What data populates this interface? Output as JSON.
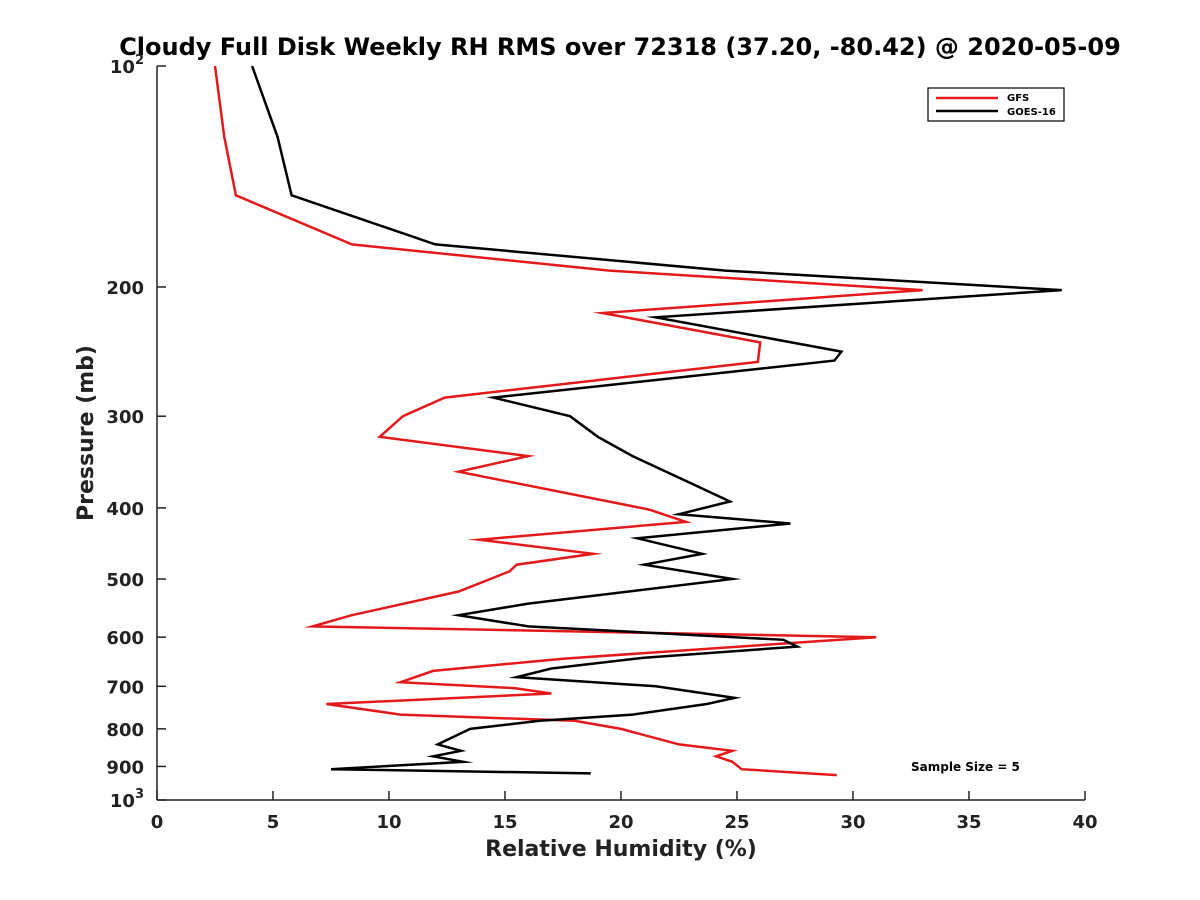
{
  "chart_data": {
    "type": "line",
    "title": "Cloudy Full Disk Weekly RH RMS over 72318 (37.20, -80.42) @ 2020-05-09",
    "xlabel": "Relative Humidity (%)",
    "ylabel": "Pressure (mb)",
    "xlim": [
      0,
      40
    ],
    "ylim": [
      100,
      1000
    ],
    "yscale": "log",
    "yreversed": true,
    "grid": false,
    "legend_position": "top-right",
    "x_ticks": [
      {
        "value": 0,
        "label": "0"
      },
      {
        "value": 5,
        "label": "5"
      },
      {
        "value": 10,
        "label": "10"
      },
      {
        "value": 15,
        "label": "15"
      },
      {
        "value": 20,
        "label": "20"
      },
      {
        "value": 25,
        "label": "25"
      },
      {
        "value": 30,
        "label": "30"
      },
      {
        "value": 35,
        "label": "35"
      },
      {
        "value": 40,
        "label": "40"
      }
    ],
    "y_ticks": [
      {
        "value": 100,
        "base": "10",
        "exp": "2"
      },
      {
        "value": 200,
        "label": "200"
      },
      {
        "value": 300,
        "label": "300"
      },
      {
        "value": 400,
        "label": "400"
      },
      {
        "value": 500,
        "label": "500"
      },
      {
        "value": 600,
        "label": "600"
      },
      {
        "value": 700,
        "label": "700"
      },
      {
        "value": 800,
        "label": "800"
      },
      {
        "value": 900,
        "label": "900"
      },
      {
        "value": 1000,
        "base": "10",
        "exp": "3"
      }
    ],
    "series": [
      {
        "name": "GFS",
        "color": "#e31a1c",
        "points": [
          [
            2.5,
            100
          ],
          [
            2.9,
            125
          ],
          [
            3.4,
            150
          ],
          [
            8.4,
            175
          ],
          [
            19.5,
            190
          ],
          [
            33.0,
            202
          ],
          [
            19.2,
            217
          ],
          [
            26.0,
            238
          ],
          [
            25.9,
            253
          ],
          [
            12.4,
            283
          ],
          [
            10.6,
            300
          ],
          [
            9.6,
            320
          ],
          [
            16.0,
            340
          ],
          [
            13.0,
            357
          ],
          [
            21.2,
            402
          ],
          [
            22.8,
            418
          ],
          [
            13.9,
            442
          ],
          [
            18.8,
            462
          ],
          [
            15.5,
            478
          ],
          [
            15.2,
            488
          ],
          [
            13.0,
            520
          ],
          [
            8.4,
            560
          ],
          [
            6.7,
            580
          ],
          [
            31.0,
            600
          ],
          [
            17.5,
            642
          ],
          [
            11.9,
            667
          ],
          [
            10.5,
            691
          ],
          [
            15.4,
            704
          ],
          [
            17.0,
            716
          ],
          [
            7.3,
            740
          ],
          [
            10.5,
            765
          ],
          [
            18.0,
            780
          ],
          [
            20.0,
            800
          ],
          [
            22.5,
            840
          ],
          [
            24.8,
            857
          ],
          [
            24.1,
            872
          ],
          [
            24.8,
            887
          ],
          [
            25.2,
            908
          ],
          [
            29.3,
            925
          ]
        ]
      },
      {
        "name": "GOES-16",
        "color": "#000000",
        "points": [
          [
            4.1,
            100
          ],
          [
            5.2,
            125
          ],
          [
            5.8,
            150
          ],
          [
            12.0,
            175
          ],
          [
            24.5,
            190
          ],
          [
            39.0,
            202
          ],
          [
            21.5,
            220
          ],
          [
            29.5,
            245
          ],
          [
            29.2,
            252
          ],
          [
            14.5,
            283
          ],
          [
            17.8,
            300
          ],
          [
            19.0,
            320
          ],
          [
            20.5,
            340
          ],
          [
            23.0,
            370
          ],
          [
            24.7,
            392
          ],
          [
            22.5,
            408
          ],
          [
            27.3,
            420
          ],
          [
            20.7,
            440
          ],
          [
            23.5,
            462
          ],
          [
            21.0,
            478
          ],
          [
            24.8,
            500
          ],
          [
            16.0,
            540
          ],
          [
            13.0,
            560
          ],
          [
            16.0,
            580
          ],
          [
            27.0,
            605
          ],
          [
            27.6,
            618
          ],
          [
            21.0,
            640
          ],
          [
            17.0,
            662
          ],
          [
            15.5,
            680
          ],
          [
            21.5,
            700
          ],
          [
            24.9,
            726
          ],
          [
            23.7,
            740
          ],
          [
            20.5,
            765
          ],
          [
            16.5,
            780
          ],
          [
            13.5,
            800
          ],
          [
            12.1,
            840
          ],
          [
            13.1,
            857
          ],
          [
            11.9,
            872
          ],
          [
            13.2,
            887
          ],
          [
            7.5,
            908
          ],
          [
            18.7,
            920
          ]
        ]
      }
    ],
    "annotations": [
      "Sample Size = 5"
    ]
  }
}
